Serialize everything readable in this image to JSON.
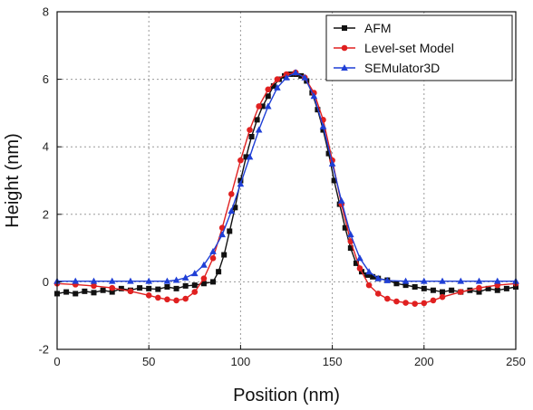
{
  "chart_data": {
    "type": "line",
    "xlabel": "Position (nm)",
    "ylabel": "Height (nm)",
    "xlim": [
      0,
      250
    ],
    "ylim": [
      -2,
      8
    ],
    "xticks": [
      0,
      50,
      100,
      150,
      200,
      250
    ],
    "yticks": [
      -2,
      0,
      2,
      4,
      6,
      8
    ],
    "grid": true,
    "legend_position": "top-right",
    "series": [
      {
        "name": "AFM",
        "color": "#111111",
        "marker": "square",
        "x": [
          0,
          5,
          10,
          15,
          20,
          25,
          30,
          35,
          40,
          45,
          50,
          55,
          60,
          65,
          70,
          75,
          80,
          85,
          88,
          91,
          94,
          97,
          100,
          103,
          106,
          109,
          112,
          115,
          118,
          121,
          124,
          127,
          130,
          133,
          136,
          139,
          142,
          145,
          148,
          151,
          154,
          157,
          160,
          163,
          166,
          169,
          172,
          175,
          180,
          185,
          190,
          195,
          200,
          205,
          210,
          215,
          220,
          225,
          230,
          235,
          240,
          245,
          250
        ],
        "y": [
          -0.35,
          -0.3,
          -0.35,
          -0.28,
          -0.32,
          -0.25,
          -0.3,
          -0.2,
          -0.25,
          -0.18,
          -0.2,
          -0.22,
          -0.15,
          -0.2,
          -0.12,
          -0.1,
          -0.05,
          0.0,
          0.3,
          0.8,
          1.5,
          2.2,
          3.0,
          3.7,
          4.3,
          4.8,
          5.2,
          5.5,
          5.8,
          6.0,
          6.1,
          6.15,
          6.15,
          6.1,
          5.95,
          5.6,
          5.1,
          4.5,
          3.8,
          3.0,
          2.3,
          1.6,
          1.0,
          0.55,
          0.3,
          0.2,
          0.15,
          0.1,
          0.05,
          -0.05,
          -0.1,
          -0.15,
          -0.2,
          -0.25,
          -0.3,
          -0.25,
          -0.3,
          -0.25,
          -0.3,
          -0.2,
          -0.25,
          -0.2,
          -0.15
        ]
      },
      {
        "name": "Level-set Model",
        "color": "#e02020",
        "marker": "circle",
        "x": [
          0,
          10,
          20,
          30,
          40,
          50,
          55,
          60,
          65,
          70,
          75,
          80,
          85,
          90,
          95,
          100,
          105,
          110,
          115,
          120,
          125,
          130,
          135,
          140,
          145,
          150,
          155,
          160,
          165,
          170,
          175,
          180,
          185,
          190,
          195,
          200,
          205,
          210,
          220,
          230,
          240,
          250
        ],
        "y": [
          -0.05,
          -0.08,
          -0.12,
          -0.18,
          -0.28,
          -0.4,
          -0.47,
          -0.52,
          -0.55,
          -0.5,
          -0.3,
          0.1,
          0.7,
          1.6,
          2.6,
          3.6,
          4.5,
          5.2,
          5.7,
          6.0,
          6.15,
          6.2,
          6.05,
          5.6,
          4.8,
          3.6,
          2.3,
          1.2,
          0.4,
          -0.1,
          -0.35,
          -0.5,
          -0.58,
          -0.62,
          -0.65,
          -0.63,
          -0.55,
          -0.45,
          -0.3,
          -0.18,
          -0.1,
          -0.05
        ]
      },
      {
        "name": "SEMulator3D",
        "color": "#1f3fd6",
        "marker": "triangle",
        "x": [
          0,
          10,
          20,
          30,
          40,
          50,
          60,
          65,
          70,
          75,
          80,
          85,
          90,
          95,
          100,
          105,
          110,
          115,
          120,
          125,
          130,
          135,
          140,
          145,
          150,
          155,
          160,
          165,
          170,
          175,
          180,
          190,
          200,
          210,
          220,
          230,
          240,
          250
        ],
        "y": [
          0.02,
          0.02,
          0.02,
          0.02,
          0.02,
          0.02,
          0.02,
          0.05,
          0.12,
          0.25,
          0.5,
          0.9,
          1.4,
          2.1,
          2.9,
          3.7,
          4.5,
          5.2,
          5.75,
          6.05,
          6.2,
          6.05,
          5.5,
          4.6,
          3.5,
          2.4,
          1.4,
          0.7,
          0.3,
          0.1,
          0.04,
          0.02,
          0.02,
          0.02,
          0.02,
          0.02,
          0.02,
          0.02
        ]
      }
    ]
  }
}
